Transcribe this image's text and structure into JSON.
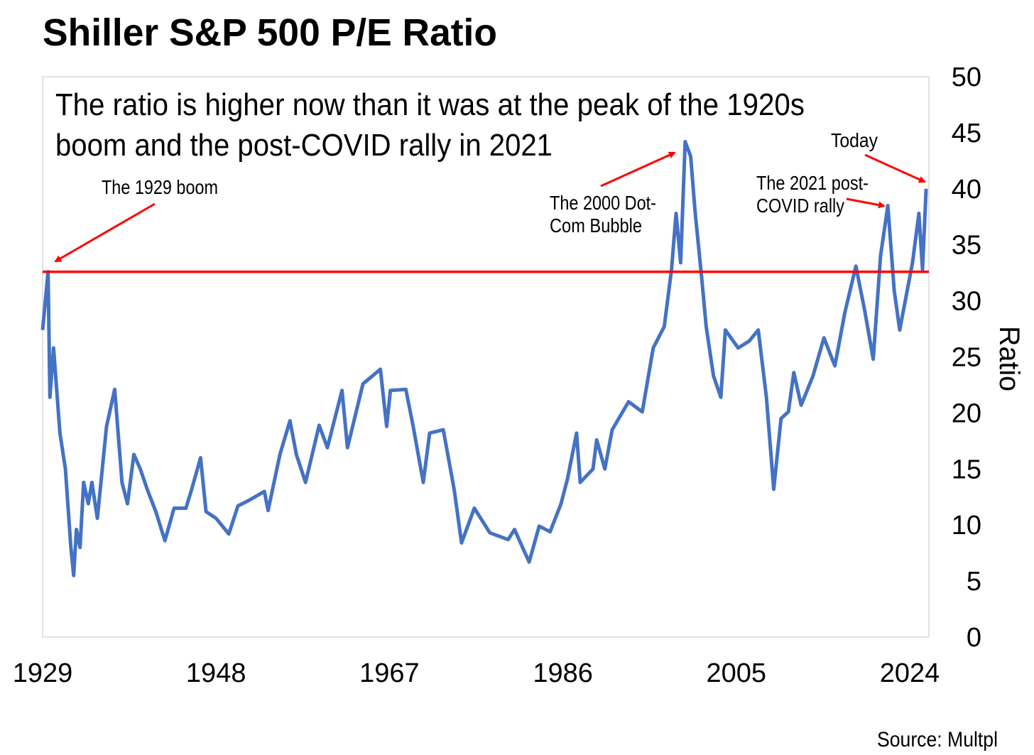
{
  "chart_data": {
    "type": "line",
    "title": "Shiller S&P 500 P/E Ratio",
    "subtitle": [
      "The ratio is higher now than it was at the peak of the 1920s",
      "boom and the post-COVID rally in 2021"
    ],
    "ylabel": "Ratio",
    "xlabel": "",
    "ylim": [
      0,
      50
    ],
    "xlim": [
      1929,
      2026.1
    ],
    "y_ticks": [
      "0",
      "5",
      "10",
      "15",
      "20",
      "25",
      "30",
      "35",
      "40",
      "45",
      "50"
    ],
    "x_ticks": [
      "1929",
      "1948",
      "1967",
      "1986",
      "2005",
      "2024"
    ],
    "grid": false,
    "source": "Source: Multpl",
    "reference_line": {
      "value": 32.6,
      "color": "#ff0000"
    },
    "series": [
      {
        "name": "Shiller P/E",
        "color": "#4472c4",
        "x": [
          1929.0,
          1929.6,
          1929.8,
          1930.2,
          1930.9,
          1931.5,
          1932.1,
          1932.4,
          1932.7,
          1933.1,
          1933.5,
          1934.0,
          1934.4,
          1935.0,
          1936.0,
          1936.9,
          1937.7,
          1938.3,
          1939.0,
          1939.7,
          1940.5,
          1941.4,
          1942.4,
          1943.4,
          1944.7,
          1945.3,
          1946.3,
          1946.9,
          1948.0,
          1949.4,
          1950.4,
          1951.6,
          1953.3,
          1953.7,
          1955.0,
          1956.1,
          1956.8,
          1957.8,
          1959.3,
          1960.2,
          1961.8,
          1962.4,
          1964.1,
          1966.0,
          1966.7,
          1967.1,
          1968.8,
          1969.6,
          1970.7,
          1971.4,
          1972.9,
          1974.1,
          1974.9,
          1976.3,
          1978.0,
          1980.0,
          1980.7,
          1982.3,
          1983.4,
          1984.6,
          1985.8,
          1986.5,
          1987.5,
          1987.9,
          1989.3,
          1989.7,
          1990.6,
          1991.4,
          1993.2,
          1994.7,
          1995.9,
          1997.1,
          1997.9,
          1998.4,
          1998.9,
          1999.4,
          2000.0,
          2000.5,
          2001.2,
          2001.7,
          2002.5,
          2003.3,
          2003.8,
          2005.2,
          2006.4,
          2007.4,
          2008.3,
          2009.1,
          2009.9,
          2010.7,
          2011.3,
          2012.1,
          2013.4,
          2014.6,
          2015.8,
          2016.9,
          2018.1,
          2019.1,
          2020.0,
          2020.8,
          2021.6,
          2022.3,
          2022.9,
          2024.3,
          2025.0,
          2025.4,
          2025.8
        ],
        "values": [
          27.4,
          32.6,
          21.4,
          25.8,
          18.2,
          15.0,
          8.0,
          5.5,
          9.6,
          8.0,
          13.8,
          11.9,
          13.8,
          10.6,
          18.8,
          22.1,
          13.8,
          11.9,
          16.3,
          15.0,
          13.1,
          11.2,
          8.6,
          11.5,
          11.5,
          13.1,
          16.0,
          11.2,
          10.6,
          9.2,
          11.7,
          12.2,
          13.0,
          11.3,
          16.3,
          19.3,
          16.3,
          13.8,
          18.9,
          16.9,
          22.0,
          16.9,
          22.6,
          23.9,
          18.8,
          22.0,
          22.1,
          18.8,
          13.8,
          18.2,
          18.5,
          13.1,
          8.4,
          11.5,
          9.3,
          8.7,
          9.6,
          6.7,
          9.9,
          9.4,
          11.9,
          14.1,
          18.2,
          13.8,
          15.0,
          17.6,
          15.0,
          18.5,
          21.0,
          20.1,
          25.8,
          27.7,
          32.8,
          37.8,
          33.4,
          44.2,
          42.9,
          37.8,
          32.1,
          27.7,
          23.3,
          21.4,
          27.4,
          25.8,
          26.4,
          27.4,
          21.4,
          13.2,
          19.5,
          20.1,
          23.6,
          20.7,
          23.3,
          26.7,
          24.2,
          29.0,
          33.1,
          29.0,
          24.8,
          34.0,
          38.5,
          30.9,
          27.4,
          33.4,
          37.8,
          32.8,
          40.0
        ]
      }
    ],
    "annotations": [
      {
        "lines": [
          "The 1929 boom"
        ]
      },
      {
        "lines": [
          "The 2000 Dot-",
          "Com Bubble"
        ]
      },
      {
        "lines": [
          "The 2021 post-",
          "COVID rally"
        ]
      },
      {
        "lines": [
          "Today"
        ]
      }
    ]
  }
}
